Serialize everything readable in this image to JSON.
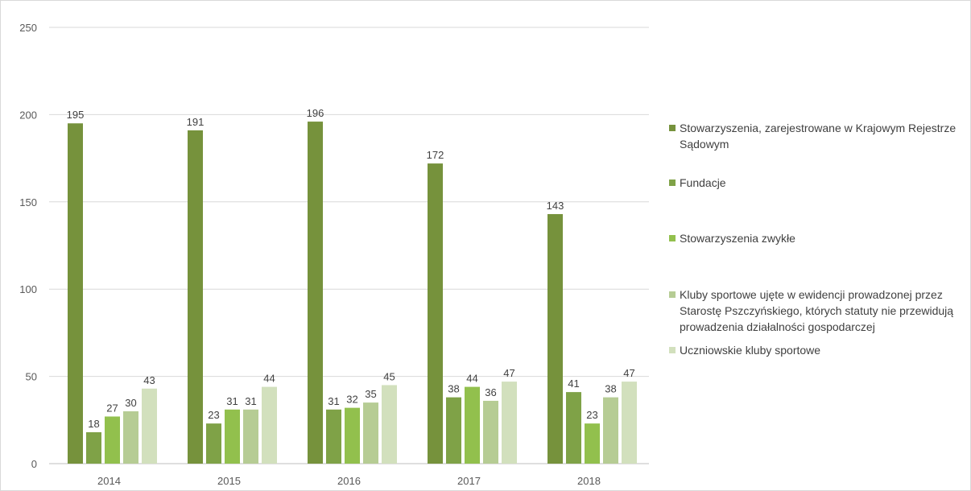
{
  "chart_data": {
    "type": "bar",
    "title": "",
    "xlabel": "",
    "ylabel": "",
    "ylim": [
      0,
      250
    ],
    "yticks": [
      0,
      50,
      100,
      150,
      200,
      250
    ],
    "grid": true,
    "legend_position": "right",
    "categories": [
      "2014",
      "2015",
      "2016",
      "2017",
      "2018"
    ],
    "series": [
      {
        "name": "Stowarzyszenia, zarejestrowane w Krajowym Rejestrze Sądowym",
        "color": "#76923c",
        "values": [
          195,
          191,
          196,
          172,
          143
        ]
      },
      {
        "name": "Fundacje",
        "color": "#7fa247",
        "values": [
          18,
          23,
          31,
          38,
          41
        ]
      },
      {
        "name": "Stowarzyszenia zwykłe",
        "color": "#92c04d",
        "values": [
          27,
          31,
          32,
          44,
          23
        ]
      },
      {
        "name": "Kluby sportowe ujęte w ewidencji prowadzonej przez Starostę Pszczyńskiego, których statuty nie przewidują prowadzenia działalności gospodarczej",
        "color": "#b6cc94",
        "values": [
          30,
          31,
          35,
          36,
          38
        ]
      },
      {
        "name": "Uczniowskie kluby sportowe",
        "color": "#d2e0bd",
        "values": [
          43,
          44,
          45,
          47,
          47
        ]
      }
    ]
  }
}
